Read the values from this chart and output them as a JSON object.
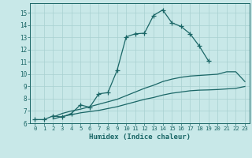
{
  "xlabel": "Humidex (Indice chaleur)",
  "xlim": [
    -0.5,
    23.5
  ],
  "ylim": [
    6,
    15.8
  ],
  "xticks": [
    0,
    1,
    2,
    3,
    4,
    5,
    6,
    7,
    8,
    9,
    10,
    11,
    12,
    13,
    14,
    15,
    16,
    17,
    18,
    19,
    20,
    21,
    22,
    23
  ],
  "yticks": [
    6,
    7,
    8,
    9,
    10,
    11,
    12,
    13,
    14,
    15
  ],
  "bg_color": "#c8e8e8",
  "line_color": "#1a6666",
  "grid_color": "#a8d0d0",
  "series_main": {
    "x": [
      0,
      1,
      2,
      3,
      4,
      5,
      6,
      7,
      8,
      9,
      10,
      11,
      12,
      13,
      14,
      15,
      16,
      17,
      18,
      19
    ],
    "y": [
      6.3,
      6.3,
      6.6,
      6.5,
      6.8,
      7.5,
      7.3,
      8.4,
      8.5,
      10.3,
      13.05,
      13.3,
      13.35,
      14.8,
      15.25,
      14.2,
      13.9,
      13.3,
      12.3,
      11.1
    ]
  },
  "series_upper": {
    "x": [
      2,
      3,
      4,
      5,
      6,
      7,
      8,
      9,
      10,
      11,
      12,
      13,
      14,
      15,
      16,
      17,
      18,
      19,
      20,
      21,
      22,
      23
    ],
    "y": [
      6.5,
      6.8,
      7.0,
      7.15,
      7.35,
      7.55,
      7.75,
      7.95,
      8.25,
      8.55,
      8.85,
      9.1,
      9.4,
      9.6,
      9.75,
      9.85,
      9.9,
      9.95,
      10.0,
      10.2,
      10.2,
      9.4
    ]
  },
  "series_lower": {
    "x": [
      2,
      3,
      4,
      5,
      6,
      7,
      8,
      9,
      10,
      11,
      12,
      13,
      14,
      15,
      16,
      17,
      18,
      19,
      20,
      21,
      22,
      23
    ],
    "y": [
      6.35,
      6.55,
      6.7,
      6.85,
      6.95,
      7.05,
      7.2,
      7.35,
      7.55,
      7.75,
      7.95,
      8.1,
      8.3,
      8.45,
      8.55,
      8.65,
      8.7,
      8.72,
      8.75,
      8.8,
      8.85,
      9.0
    ]
  }
}
